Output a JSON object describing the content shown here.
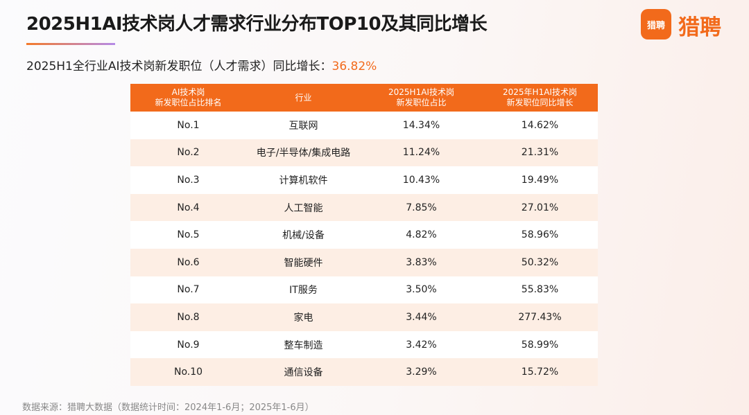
{
  "header": {
    "title": "2025H1AI技术岗人才需求行业分布TOP10及其同比增长",
    "subtitle": "2025H1全行业AI技术岗新发职位（人才需求）同比增长：",
    "subtitle_value": "36.82%",
    "logo_badge": "猎聘",
    "logo_text": "猎聘"
  },
  "table": {
    "columns": [
      [
        "AI技术岗",
        "新发职位占比排名"
      ],
      [
        "行业"
      ],
      [
        "2025H1AI技术岗",
        "新发职位占比"
      ],
      [
        "2025年H1AI技术岗",
        "新发职位同比增长"
      ]
    ],
    "rows": [
      [
        "No.1",
        "互联网",
        "14.34%",
        "14.62%"
      ],
      [
        "No.2",
        "电子/半导体/集成电路",
        "11.24%",
        "21.31%"
      ],
      [
        "No.3",
        "计算机软件",
        "10.43%",
        "19.49%"
      ],
      [
        "No.4",
        "人工智能",
        "7.85%",
        "27.01%"
      ],
      [
        "No.5",
        "机械/设备",
        "4.82%",
        "58.96%"
      ],
      [
        "No.6",
        "智能硬件",
        "3.83%",
        "50.32%"
      ],
      [
        "No.7",
        "IT服务",
        "3.50%",
        "55.83%"
      ],
      [
        "No.8",
        "家电",
        "3.44%",
        "277.43%"
      ],
      [
        "No.9",
        "整车制造",
        "3.42%",
        "58.99%"
      ],
      [
        "No.10",
        "通信设备",
        "3.29%",
        "15.72%"
      ]
    ]
  },
  "footer": {
    "source": "数据来源：猎聘大数据（数据统计时间：2024年1-6月；2025年1-6月）"
  }
}
